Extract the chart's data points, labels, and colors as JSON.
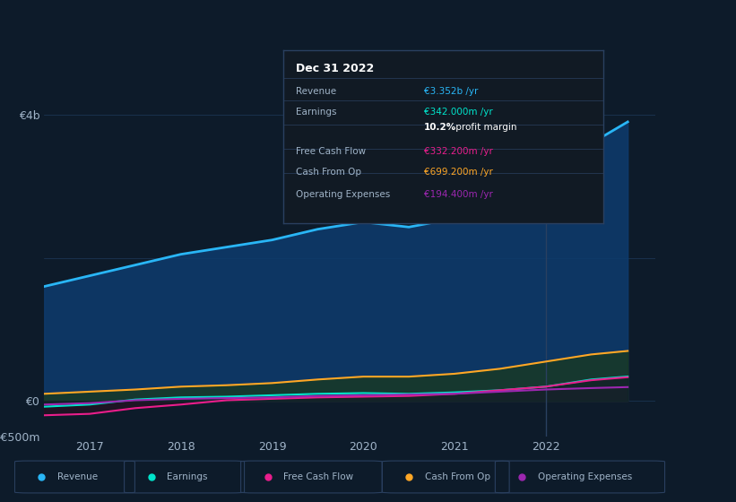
{
  "background_color": "#0d1b2a",
  "plot_bg_color": "#0d1b2a",
  "years": [
    2016.5,
    2017.0,
    2017.5,
    2018.0,
    2018.5,
    2019.0,
    2019.5,
    2020.0,
    2020.5,
    2021.0,
    2021.5,
    2022.0,
    2022.5,
    2022.9
  ],
  "revenue": [
    1600,
    1750,
    1900,
    2050,
    2150,
    2250,
    2400,
    2500,
    2430,
    2550,
    2700,
    2900,
    3600,
    3900
  ],
  "earnings": [
    -80,
    -50,
    20,
    50,
    60,
    80,
    100,
    110,
    100,
    120,
    150,
    200,
    300,
    342
  ],
  "free_cash_flow": [
    -200,
    -180,
    -100,
    -50,
    10,
    30,
    50,
    60,
    70,
    100,
    150,
    200,
    290,
    332
  ],
  "cash_from_op": [
    100,
    130,
    160,
    200,
    220,
    250,
    300,
    340,
    340,
    380,
    450,
    550,
    650,
    699
  ],
  "operating_expenses": [
    -50,
    -30,
    10,
    30,
    40,
    50,
    70,
    80,
    90,
    100,
    130,
    160,
    180,
    194
  ],
  "revenue_color": "#29b6f6",
  "earnings_color": "#00e5cc",
  "free_cash_flow_color": "#e91e8c",
  "cash_from_op_color": "#ffa726",
  "operating_expenses_color": "#9c27b0",
  "fill_revenue_color": "#0d3b6e",
  "grid_color": "#1e3a5a",
  "text_color": "#a0b4c8",
  "legend_labels": [
    "Revenue",
    "Earnings",
    "Free Cash Flow",
    "Cash From Op",
    "Operating Expenses"
  ],
  "tooltip_bg": "#111a24",
  "tooltip_border": "#2a4060",
  "tooltip_title": "Dec 31 2022",
  "xticks": [
    2017,
    2018,
    2019,
    2020,
    2021,
    2022
  ],
  "xlim": [
    2016.5,
    2023.2
  ],
  "ylim": [
    -500,
    4200
  ]
}
